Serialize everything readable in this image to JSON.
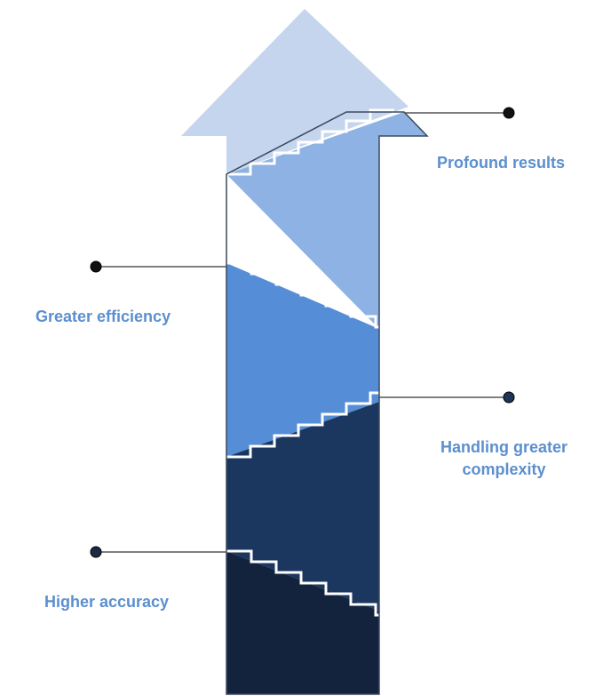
{
  "colors": {
    "arrow_head": "#c5d5ee",
    "band_1": "#14233d",
    "band_2": "#1b365f",
    "band_3": "#558dd6",
    "band_4": "#8db2e3",
    "outline": "#3b4a5e",
    "step_edge": "#9a9a9a",
    "step_highlight": "#ffffff",
    "connector_line": "#555555",
    "text": "#5b8fce"
  },
  "stages": [
    {
      "id": "higher-accuracy",
      "lines": [
        "Higher accuracy"
      ],
      "dot_color": "#1b2a44"
    },
    {
      "id": "handling-greater-complexity",
      "lines": [
        "Handling greater",
        "complexity"
      ],
      "dot_color": "#1e3458"
    },
    {
      "id": "greater-efficiency",
      "lines": [
        "Greater efficiency"
      ],
      "dot_color": "#111111"
    },
    {
      "id": "profound-results",
      "lines": [
        "Profound results"
      ],
      "dot_color": "#111111"
    }
  ]
}
